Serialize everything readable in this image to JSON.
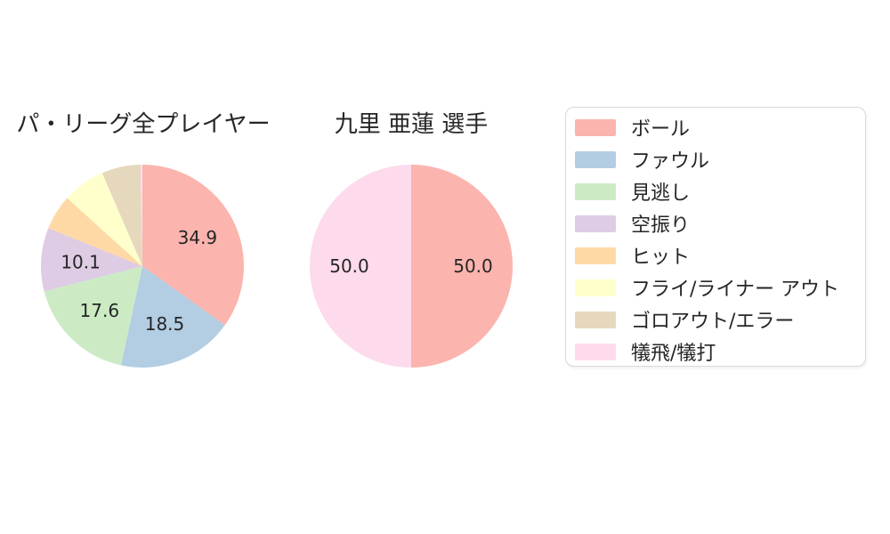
{
  "figure": {
    "background": "#ffffff",
    "text_color": "#262626"
  },
  "chart_data": [
    {
      "type": "pie",
      "title": "パ・リーグ全プレイヤー",
      "start_angle_deg": 90,
      "direction": "clockwise",
      "labels": [
        "ボール",
        "ファウル",
        "見逃し",
        "空振り",
        "ヒット",
        "フライ/ライナー アウト",
        "ゴロアウト/エラー",
        "犠飛/犠打"
      ],
      "values": [
        34.9,
        18.5,
        17.6,
        10.1,
        5.6,
        6.8,
        6.2,
        0.3
      ],
      "displayed_labels": [
        "34.9",
        "18.5",
        "17.6",
        "10.1",
        "",
        "",
        "",
        ""
      ],
      "colors": [
        "#fbb4ae",
        "#b3cde3",
        "#ccebc5",
        "#decbe4",
        "#fed9a6",
        "#ffffcc",
        "#e5d8bd",
        "#fddaec"
      ]
    },
    {
      "type": "pie",
      "title": "九里 亜蓮 選手",
      "start_angle_deg": 90,
      "direction": "clockwise",
      "labels": [
        "ボール",
        "犠飛/犠打"
      ],
      "values": [
        50.0,
        50.0
      ],
      "displayed_labels": [
        "50.0",
        "50.0"
      ],
      "colors": [
        "#fbb4ae",
        "#fddaec"
      ]
    }
  ],
  "legend": {
    "position": "right",
    "items": [
      {
        "label": "ボール",
        "color": "#fbb4ae"
      },
      {
        "label": "ファウル",
        "color": "#b3cde3"
      },
      {
        "label": "見逃し",
        "color": "#ccebc5"
      },
      {
        "label": "空振り",
        "color": "#decbe4"
      },
      {
        "label": "ヒット",
        "color": "#fed9a6"
      },
      {
        "label": "フライ/ライナー アウト",
        "color": "#ffffcc"
      },
      {
        "label": "ゴロアウト/エラー",
        "color": "#e5d8bd"
      },
      {
        "label": "犠飛/犠打",
        "color": "#fddaec"
      }
    ]
  }
}
